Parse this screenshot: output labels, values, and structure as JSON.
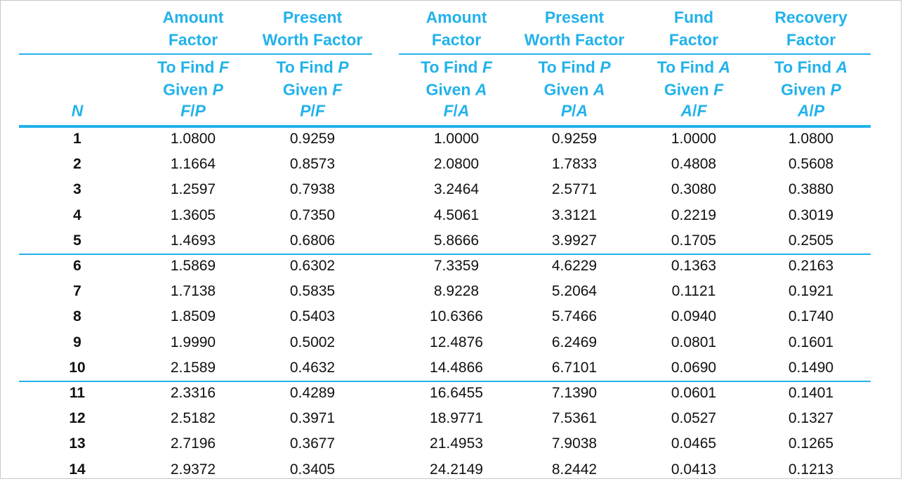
{
  "table": {
    "header": {
      "n_label": "N",
      "columns": [
        {
          "title": [
            "Amount",
            "Factor"
          ],
          "to_find": [
            "To Find",
            "F"
          ],
          "given": [
            "Given",
            "P"
          ],
          "symbol": [
            "F",
            "/",
            "P"
          ]
        },
        {
          "title": [
            "Present",
            "Worth Factor"
          ],
          "to_find": [
            "To Find",
            "P"
          ],
          "given": [
            "Given",
            "F"
          ],
          "symbol": [
            "P",
            "/",
            "F"
          ]
        },
        {
          "title": [
            "Amount",
            "Factor"
          ],
          "to_find": [
            "To Find",
            "F"
          ],
          "given": [
            "Given",
            "A"
          ],
          "symbol": [
            "F",
            "/",
            "A"
          ]
        },
        {
          "title": [
            "Present",
            "Worth Factor"
          ],
          "to_find": [
            "To Find",
            "P"
          ],
          "given": [
            "Given",
            "A"
          ],
          "symbol": [
            "P",
            "/",
            "A"
          ]
        },
        {
          "title": [
            "Fund",
            "Factor"
          ],
          "to_find": [
            "To Find",
            "A"
          ],
          "given": [
            "Given",
            "F"
          ],
          "symbol": [
            "A",
            "/",
            "F"
          ]
        },
        {
          "title": [
            "Recovery",
            "Factor"
          ],
          "to_find": [
            "To Find",
            "A"
          ],
          "given": [
            "Given",
            "P"
          ],
          "symbol": [
            "A",
            "/",
            "P"
          ]
        }
      ]
    },
    "rows": [
      [
        "1",
        "1.0800",
        "0.9259",
        "1.0000",
        "0.9259",
        "1.0000",
        "1.0800"
      ],
      [
        "2",
        "1.1664",
        "0.8573",
        "2.0800",
        "1.7833",
        "0.4808",
        "0.5608"
      ],
      [
        "3",
        "1.2597",
        "0.7938",
        "3.2464",
        "2.5771",
        "0.3080",
        "0.3880"
      ],
      [
        "4",
        "1.3605",
        "0.7350",
        "4.5061",
        "3.3121",
        "0.2219",
        "0.3019"
      ],
      [
        "5",
        "1.4693",
        "0.6806",
        "5.8666",
        "3.9927",
        "0.1705",
        "0.2505"
      ],
      [
        "6",
        "1.5869",
        "0.6302",
        "7.3359",
        "4.6229",
        "0.1363",
        "0.2163"
      ],
      [
        "7",
        "1.7138",
        "0.5835",
        "8.9228",
        "5.2064",
        "0.1121",
        "0.1921"
      ],
      [
        "8",
        "1.8509",
        "0.5403",
        "10.6366",
        "5.7466",
        "0.0940",
        "0.1740"
      ],
      [
        "9",
        "1.9990",
        "0.5002",
        "12.4876",
        "6.2469",
        "0.0801",
        "0.1601"
      ],
      [
        "10",
        "2.1589",
        "0.4632",
        "14.4866",
        "6.7101",
        "0.0690",
        "0.1490"
      ],
      [
        "11",
        "2.3316",
        "0.4289",
        "16.6455",
        "7.1390",
        "0.0601",
        "0.1401"
      ],
      [
        "12",
        "2.5182",
        "0.3971",
        "18.9771",
        "7.5361",
        "0.0527",
        "0.1327"
      ],
      [
        "13",
        "2.7196",
        "0.3677",
        "21.4953",
        "7.9038",
        "0.0465",
        "0.1265"
      ],
      [
        "14",
        "2.9372",
        "0.3405",
        "24.2149",
        "8.2442",
        "0.0413",
        "0.1213"
      ]
    ]
  }
}
